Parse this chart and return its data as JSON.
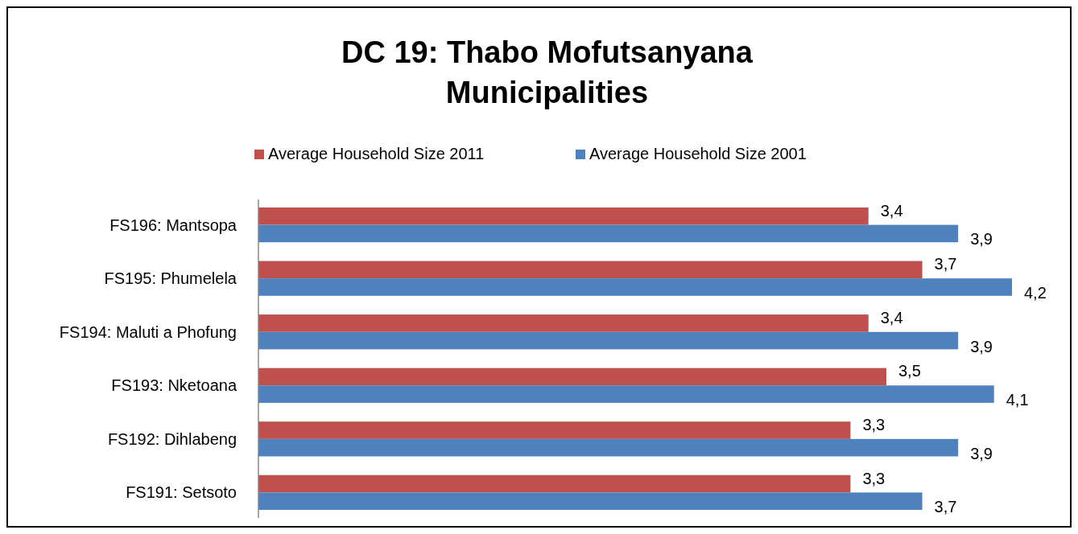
{
  "chart_data": {
    "type": "bar",
    "orientation": "horizontal",
    "title": "DC 19: Thabo Mofutsanyana Municipalities",
    "categories": [
      "FS196: Mantsopa",
      "FS195: Phumelela",
      "FS194: Maluti a Phofung",
      "FS193: Nketoana",
      "FS192: Dihlabeng",
      "FS191: Setsoto"
    ],
    "series": [
      {
        "name": "Average Household Size 2011",
        "color": "#c0504d",
        "values": [
          3.4,
          3.7,
          3.4,
          3.5,
          3.3,
          3.3
        ],
        "value_labels": [
          "3,4",
          "3,7",
          "3,4",
          "3,5",
          "3,3",
          "3,3"
        ]
      },
      {
        "name": "Average Household Size 2001",
        "color": "#4f81bd",
        "values": [
          3.9,
          4.2,
          3.9,
          4.1,
          3.9,
          3.7
        ],
        "value_labels": [
          "3,9",
          "4,2",
          "3,9",
          "4,1",
          "3,9",
          "3,7"
        ]
      }
    ],
    "legend": "top",
    "grid": false
  }
}
